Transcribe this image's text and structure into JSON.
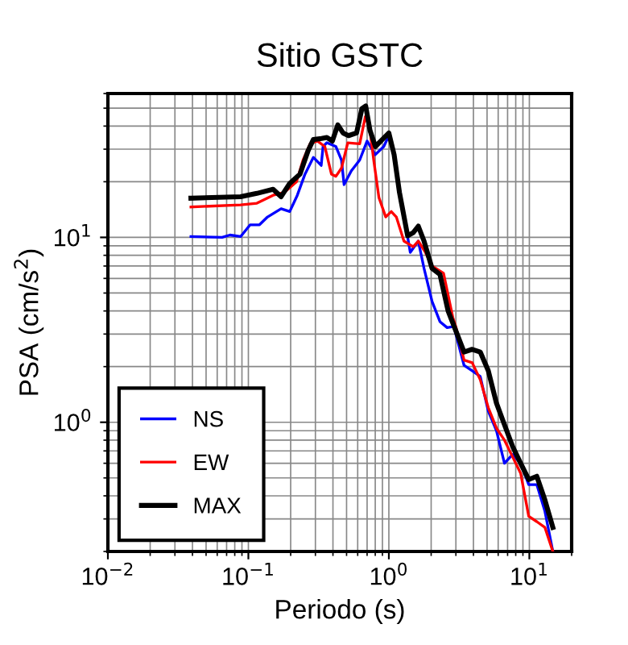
{
  "chart_data": {
    "type": "line",
    "title": "Sitio GSTC",
    "xlabel": "Periodo (s)",
    "ylabel": "PSA (cm/s$^{2}$)",
    "log": "xy",
    "grid": true,
    "legend": "bottom left",
    "line_style": "solid",
    "xlim": [
      0.01,
      20
    ],
    "ylim": [
      0.2,
      60
    ],
    "xticks": [
      {
        "value": 0.01,
        "label": "10$^{−2}$"
      },
      {
        "value": 0.1,
        "label": "10$^{−1}$"
      },
      {
        "value": 1,
        "label": "10$^{0}$"
      },
      {
        "value": 10,
        "label": "10$^{1}$"
      }
    ],
    "yticks": [
      {
        "value": 1,
        "label": "10$^{0}$"
      },
      {
        "value": 10,
        "label": "10$^{1}$"
      }
    ],
    "series": [
      {
        "name": "NS",
        "color": "#0000ff",
        "x": [
          0.039,
          0.065,
          0.074,
          0.088,
          0.103,
          0.12,
          0.137,
          0.171,
          0.197,
          0.223,
          0.253,
          0.29,
          0.33,
          0.34,
          0.362,
          0.42,
          0.46,
          0.48,
          0.54,
          0.62,
          0.7,
          0.8,
          0.92,
          1.0,
          1.09,
          1.42,
          1.62,
          1.78,
          2.03,
          2.31,
          2.6,
          2.9,
          3.43,
          3.92,
          4.47,
          5.1,
          5.83,
          6.65,
          7.6,
          8.67,
          9.9,
          11.3,
          12.9,
          14.7
        ],
        "values": [
          10.1,
          10.0,
          10.3,
          10.1,
          11.7,
          11.7,
          12.9,
          14.3,
          13.8,
          16.9,
          22,
          27.1,
          24.5,
          31,
          32.5,
          31,
          26.2,
          19.3,
          22.9,
          26.2,
          33.2,
          28,
          31,
          35.5,
          27.1,
          8.3,
          9.55,
          6.8,
          4.5,
          3.5,
          3.25,
          3.3,
          2.03,
          1.9,
          1.77,
          1.15,
          0.9,
          0.6,
          0.67,
          0.6,
          0.46,
          0.46,
          0.33,
          0.2
        ]
      },
      {
        "name": "EW",
        "color": "#ff0000",
        "x": [
          0.039,
          0.088,
          0.115,
          0.15,
          0.18,
          0.22,
          0.245,
          0.275,
          0.31,
          0.35,
          0.39,
          0.42,
          0.46,
          0.51,
          0.62,
          0.68,
          0.73,
          0.78,
          0.85,
          0.95,
          1.04,
          1.13,
          1.28,
          1.49,
          1.62,
          1.82,
          2.03,
          2.45,
          2.85,
          3.01,
          3.43,
          3.92,
          4.47,
          5.1,
          5.83,
          6.65,
          7.6,
          8.67,
          9.9,
          11.3,
          12.9,
          14.7
        ],
        "values": [
          14.6,
          15,
          15.3,
          16.9,
          17.5,
          20,
          26.2,
          32.1,
          33.2,
          31,
          22,
          21.4,
          23.7,
          32.5,
          32.1,
          45,
          39,
          26.2,
          16.4,
          12.9,
          13.8,
          12.9,
          9.55,
          8.9,
          9.55,
          8.3,
          7.0,
          6.4,
          3.7,
          3.25,
          2.17,
          2.1,
          1.7,
          1.2,
          0.93,
          0.8,
          0.65,
          0.53,
          0.31,
          0.29,
          0.27,
          0.2
        ]
      },
      {
        "name": "MAX",
        "color": "#000000",
        "x": [
          0.039,
          0.088,
          0.115,
          0.15,
          0.171,
          0.197,
          0.233,
          0.266,
          0.29,
          0.332,
          0.362,
          0.396,
          0.433,
          0.472,
          0.516,
          0.589,
          0.643,
          0.684,
          0.734,
          0.802,
          0.877,
          1.0,
          1.09,
          1.19,
          1.36,
          1.49,
          1.62,
          1.78,
          2.03,
          2.31,
          2.64,
          3.01,
          3.43,
          3.92,
          4.47,
          5.1,
          5.83,
          6.65,
          7.6,
          8.67,
          9.9,
          11.3,
          12.9,
          14.7
        ],
        "values": [
          16.3,
          16.6,
          17.3,
          18.2,
          16.6,
          19.6,
          22,
          29.4,
          33.8,
          34.3,
          34.7,
          33.2,
          40.6,
          36.7,
          35.5,
          36.7,
          49.7,
          51.4,
          37.9,
          31,
          33.2,
          36.7,
          28,
          17.5,
          10.2,
          10.6,
          11.5,
          9.55,
          6.8,
          6.3,
          4.0,
          3.1,
          2.4,
          2.48,
          2.4,
          1.9,
          1.27,
          0.97,
          0.74,
          0.6,
          0.49,
          0.51,
          0.38,
          0.27
        ]
      }
    ]
  }
}
